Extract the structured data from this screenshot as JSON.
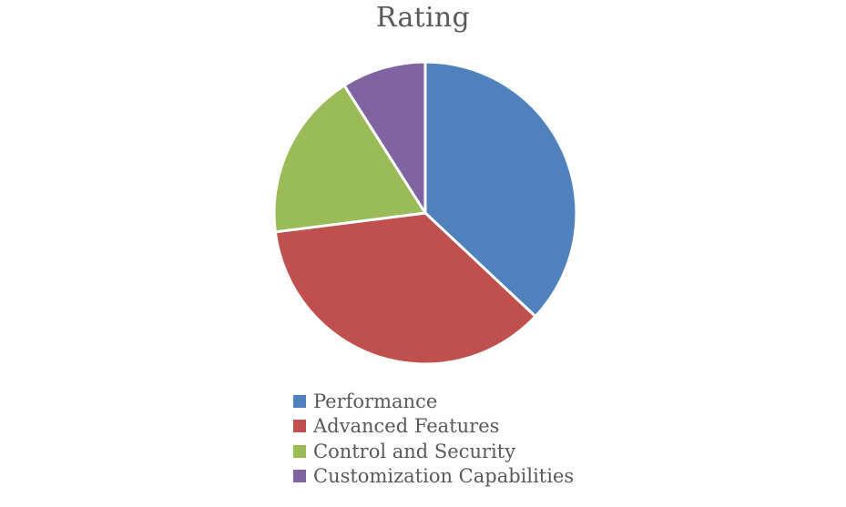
{
  "chart_data": {
    "type": "pie",
    "title": "Rating",
    "categories": [
      "Performance",
      "Advanced Features",
      "Control and Security",
      "Customization Capabilities"
    ],
    "values": [
      37,
      36,
      18,
      9
    ],
    "colors": [
      "#4F81BD",
      "#C0504D",
      "#9BBB59",
      "#8064A2"
    ],
    "start_angle_deg": 0,
    "direction": "clockwise",
    "legend_position": "bottom"
  }
}
